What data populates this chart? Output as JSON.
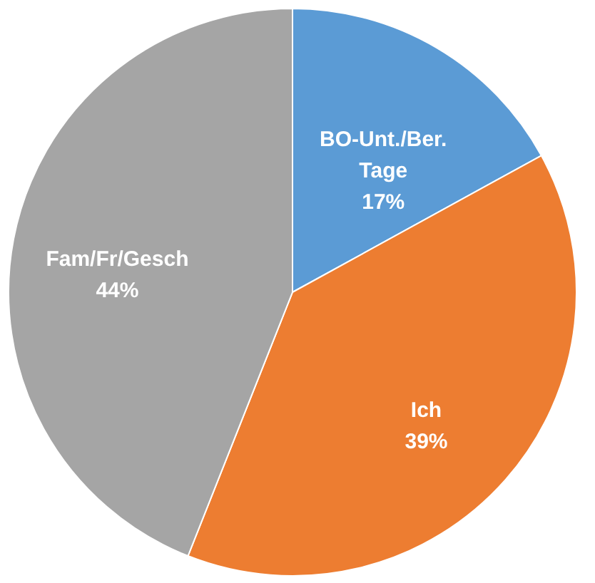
{
  "chart_data": {
    "type": "pie",
    "categories": [
      "BO-Unt./Ber. Tage",
      "Ich",
      "Fam/Fr/Gesch"
    ],
    "values": [
      17,
      39,
      44
    ],
    "colors": [
      "#5b9bd5",
      "#ed7d31",
      "#a5a5a5"
    ],
    "value_labels": [
      "17%",
      "39%",
      "44%"
    ],
    "legend": false
  }
}
